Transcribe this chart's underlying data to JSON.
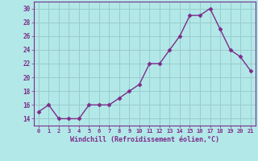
{
  "x": [
    0,
    1,
    2,
    3,
    4,
    5,
    6,
    7,
    8,
    9,
    10,
    11,
    12,
    13,
    14,
    15,
    16,
    17,
    18,
    19,
    20,
    21
  ],
  "y": [
    15,
    16,
    14,
    14,
    14,
    16,
    16,
    16,
    17,
    18,
    19,
    22,
    22,
    24,
    26,
    29,
    29,
    30,
    27,
    24,
    23,
    21
  ],
  "line_color": "#7b2d8b",
  "marker_color": "#7b2d8b",
  "bg_color": "#b3e8e8",
  "grid_color": "#99cccc",
  "xlabel": "Windchill (Refroidissement éolien,°C)",
  "ylabel_ticks": [
    14,
    16,
    18,
    20,
    22,
    24,
    26,
    28,
    30
  ],
  "xticks": [
    0,
    1,
    2,
    3,
    4,
    5,
    6,
    7,
    8,
    9,
    10,
    11,
    12,
    13,
    14,
    15,
    16,
    17,
    18,
    19,
    20,
    21
  ],
  "xlim": [
    -0.5,
    21.5
  ],
  "ylim": [
    13,
    31
  ]
}
